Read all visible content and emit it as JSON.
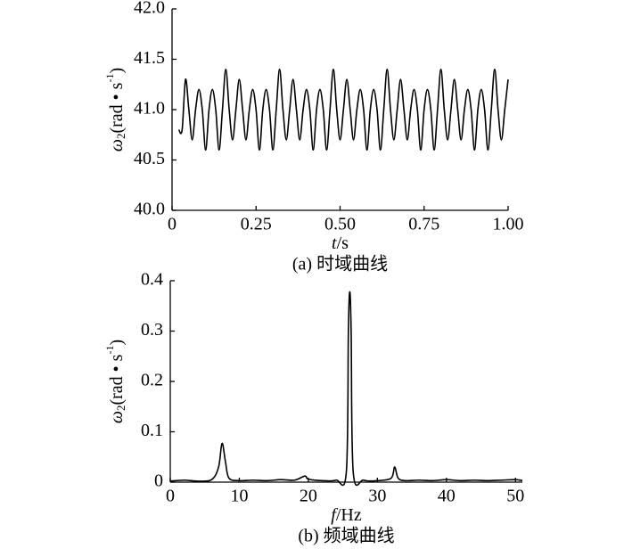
{
  "chart_data": [
    {
      "type": "line",
      "color": "#000000",
      "x": [
        0.02,
        0.03,
        0.04,
        0.05,
        0.06,
        0.07,
        0.08,
        0.09,
        0.1,
        0.11,
        0.12,
        0.13,
        0.14,
        0.15,
        0.16,
        0.17,
        0.18,
        0.19,
        0.2,
        0.21,
        0.22,
        0.23,
        0.24,
        0.25,
        0.26,
        0.27,
        0.28,
        0.29,
        0.3,
        0.31,
        0.32,
        0.33,
        0.34,
        0.35,
        0.36,
        0.37,
        0.38,
        0.39,
        0.4,
        0.41,
        0.42,
        0.43,
        0.44,
        0.45,
        0.46,
        0.47,
        0.48,
        0.49,
        0.5,
        0.51,
        0.52,
        0.53,
        0.54,
        0.55,
        0.56,
        0.57,
        0.58,
        0.59,
        0.6,
        0.61,
        0.62,
        0.63,
        0.64,
        0.65,
        0.66,
        0.67,
        0.68,
        0.69,
        0.7,
        0.71,
        0.72,
        0.73,
        0.74,
        0.75,
        0.76,
        0.77,
        0.78,
        0.79,
        0.8,
        0.81,
        0.82,
        0.83,
        0.84,
        0.85,
        0.86,
        0.87,
        0.88,
        0.89,
        0.9,
        0.91,
        0.92,
        0.93,
        0.94,
        0.95,
        0.96,
        0.97,
        0.98,
        0.99,
        1.0
      ],
      "values": [
        40.8,
        40.8,
        41.3,
        41,
        40.7,
        41,
        41.2,
        41,
        40.6,
        41,
        41.2,
        41,
        40.6,
        41,
        41.4,
        41,
        40.7,
        41,
        41.3,
        41,
        40.7,
        41,
        41.2,
        41,
        40.6,
        41,
        41.2,
        41,
        40.6,
        41,
        41.4,
        41,
        40.7,
        41,
        41.3,
        41,
        40.7,
        41,
        41.2,
        41,
        40.6,
        41,
        41.2,
        41,
        40.6,
        41,
        41.4,
        41,
        40.7,
        41,
        41.3,
        41,
        40.7,
        41,
        41.2,
        41,
        40.6,
        41,
        41.2,
        41,
        40.6,
        41,
        41.4,
        41,
        40.7,
        41,
        41.3,
        41,
        40.7,
        41,
        41.2,
        41,
        40.6,
        41,
        41.2,
        41,
        40.6,
        41,
        41.4,
        41,
        40.7,
        41,
        41.3,
        41,
        40.7,
        41,
        41.2,
        41,
        40.6,
        41,
        41.2,
        41,
        40.6,
        41,
        41.4,
        41,
        40.7,
        41,
        41.3
      ],
      "xlim": [
        0,
        1
      ],
      "ylim": [
        40,
        42
      ],
      "xticks": [
        0,
        {
          "value": 0.25,
          "label": "0.25"
        },
        {
          "value": 0.5,
          "label": "0.50"
        },
        {
          "value": 0.75,
          "label": "0.75"
        },
        {
          "value": 1,
          "label": "1.00"
        }
      ],
      "yticks": [
        {
          "value": 40,
          "label": "40.0"
        },
        40.5,
        {
          "value": 41,
          "label": "41.0"
        },
        41.5,
        {
          "value": 42,
          "label": "42.0"
        }
      ],
      "xlabel": {
        "var": "t",
        "unit": "/s"
      },
      "ylabel": {
        "symbol": "ω",
        "sub": "2",
        "text": "(rad • s",
        "sup": "-1",
        "close": ")"
      },
      "caption": "(a) 时域曲线"
    },
    {
      "type": "line",
      "color": "#000000",
      "x": [
        0,
        2,
        4,
        6,
        7,
        7.5,
        8,
        8.5,
        10,
        12,
        14,
        16,
        18,
        19.5,
        20,
        22,
        24,
        25.5,
        25.8,
        26,
        26.2,
        26.5,
        28,
        30,
        32,
        32.5,
        33,
        34,
        36,
        38,
        40,
        42,
        44,
        46,
        48,
        50,
        51
      ],
      "values": [
        0.002,
        0.004,
        0.002,
        0.005,
        0.03,
        0.077,
        0.04,
        0.008,
        0.003,
        0.004,
        0.003,
        0.005,
        0.004,
        0.012,
        0.006,
        0.003,
        0.004,
        0.02,
        0.3,
        0.378,
        0.3,
        0.02,
        0.004,
        0.003,
        0.008,
        0.03,
        0.008,
        0.003,
        0.004,
        0.003,
        0.005,
        0.003,
        0.004,
        0.003,
        0.004,
        0.005,
        0.003
      ],
      "xlim": [
        0,
        51
      ],
      "ylim": [
        0,
        0.4
      ],
      "xticks": [
        0,
        10,
        20,
        30,
        40,
        50
      ],
      "yticks": [
        0,
        0.1,
        0.2,
        0.3,
        0.4
      ],
      "xlabel": {
        "var": "f",
        "unit": "/Hz"
      },
      "ylabel": {
        "symbol": "ω",
        "sub": "2",
        "text": "(rad • s",
        "sup": "-1",
        "close": ")"
      },
      "caption": "(b) 频域曲线"
    }
  ]
}
